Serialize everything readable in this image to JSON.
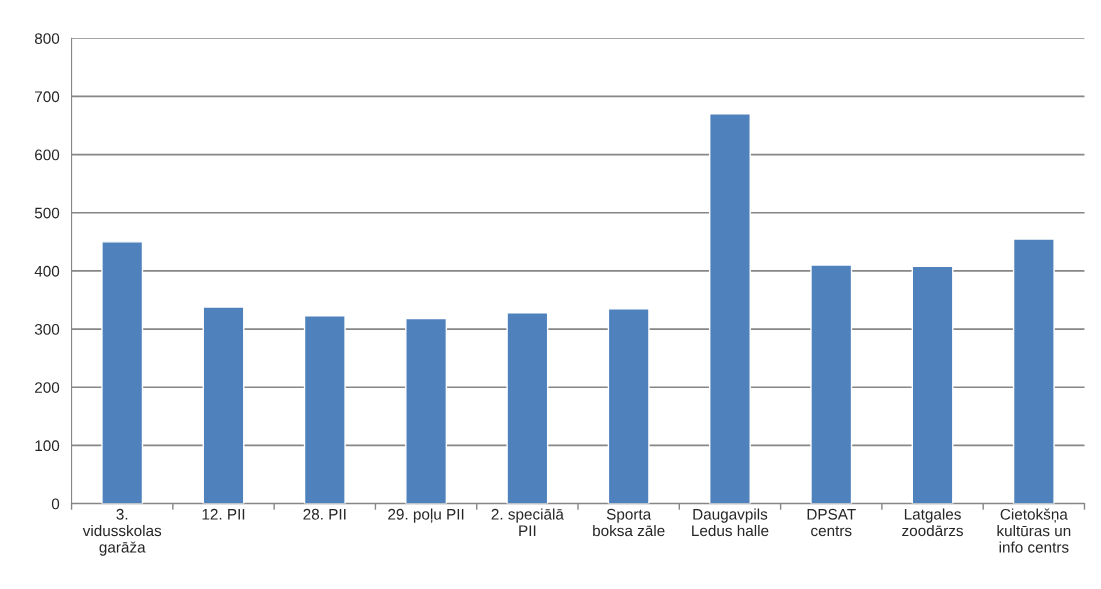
{
  "chart_data": {
    "type": "bar",
    "categories": [
      "3.\nvidusskolas\ngarāža",
      "12. PII",
      "28. PII",
      "29. poļu PII",
      "2. speciālā\nPII",
      "Sporta\nboksa zāle",
      "Daugavpils\nLedus halle",
      "DPSAT\ncentrs",
      "Latgales\nzoodārzs",
      "Cietokšņa\nkultūras un\ninfo centrs"
    ],
    "values": [
      450,
      338,
      323,
      318,
      328,
      335,
      670,
      410,
      408,
      455
    ],
    "color": "#4f81bd",
    "ylim": [
      0,
      800
    ],
    "yticks": [
      0,
      100,
      200,
      300,
      400,
      500,
      600,
      700,
      800
    ],
    "grid": "y"
  }
}
